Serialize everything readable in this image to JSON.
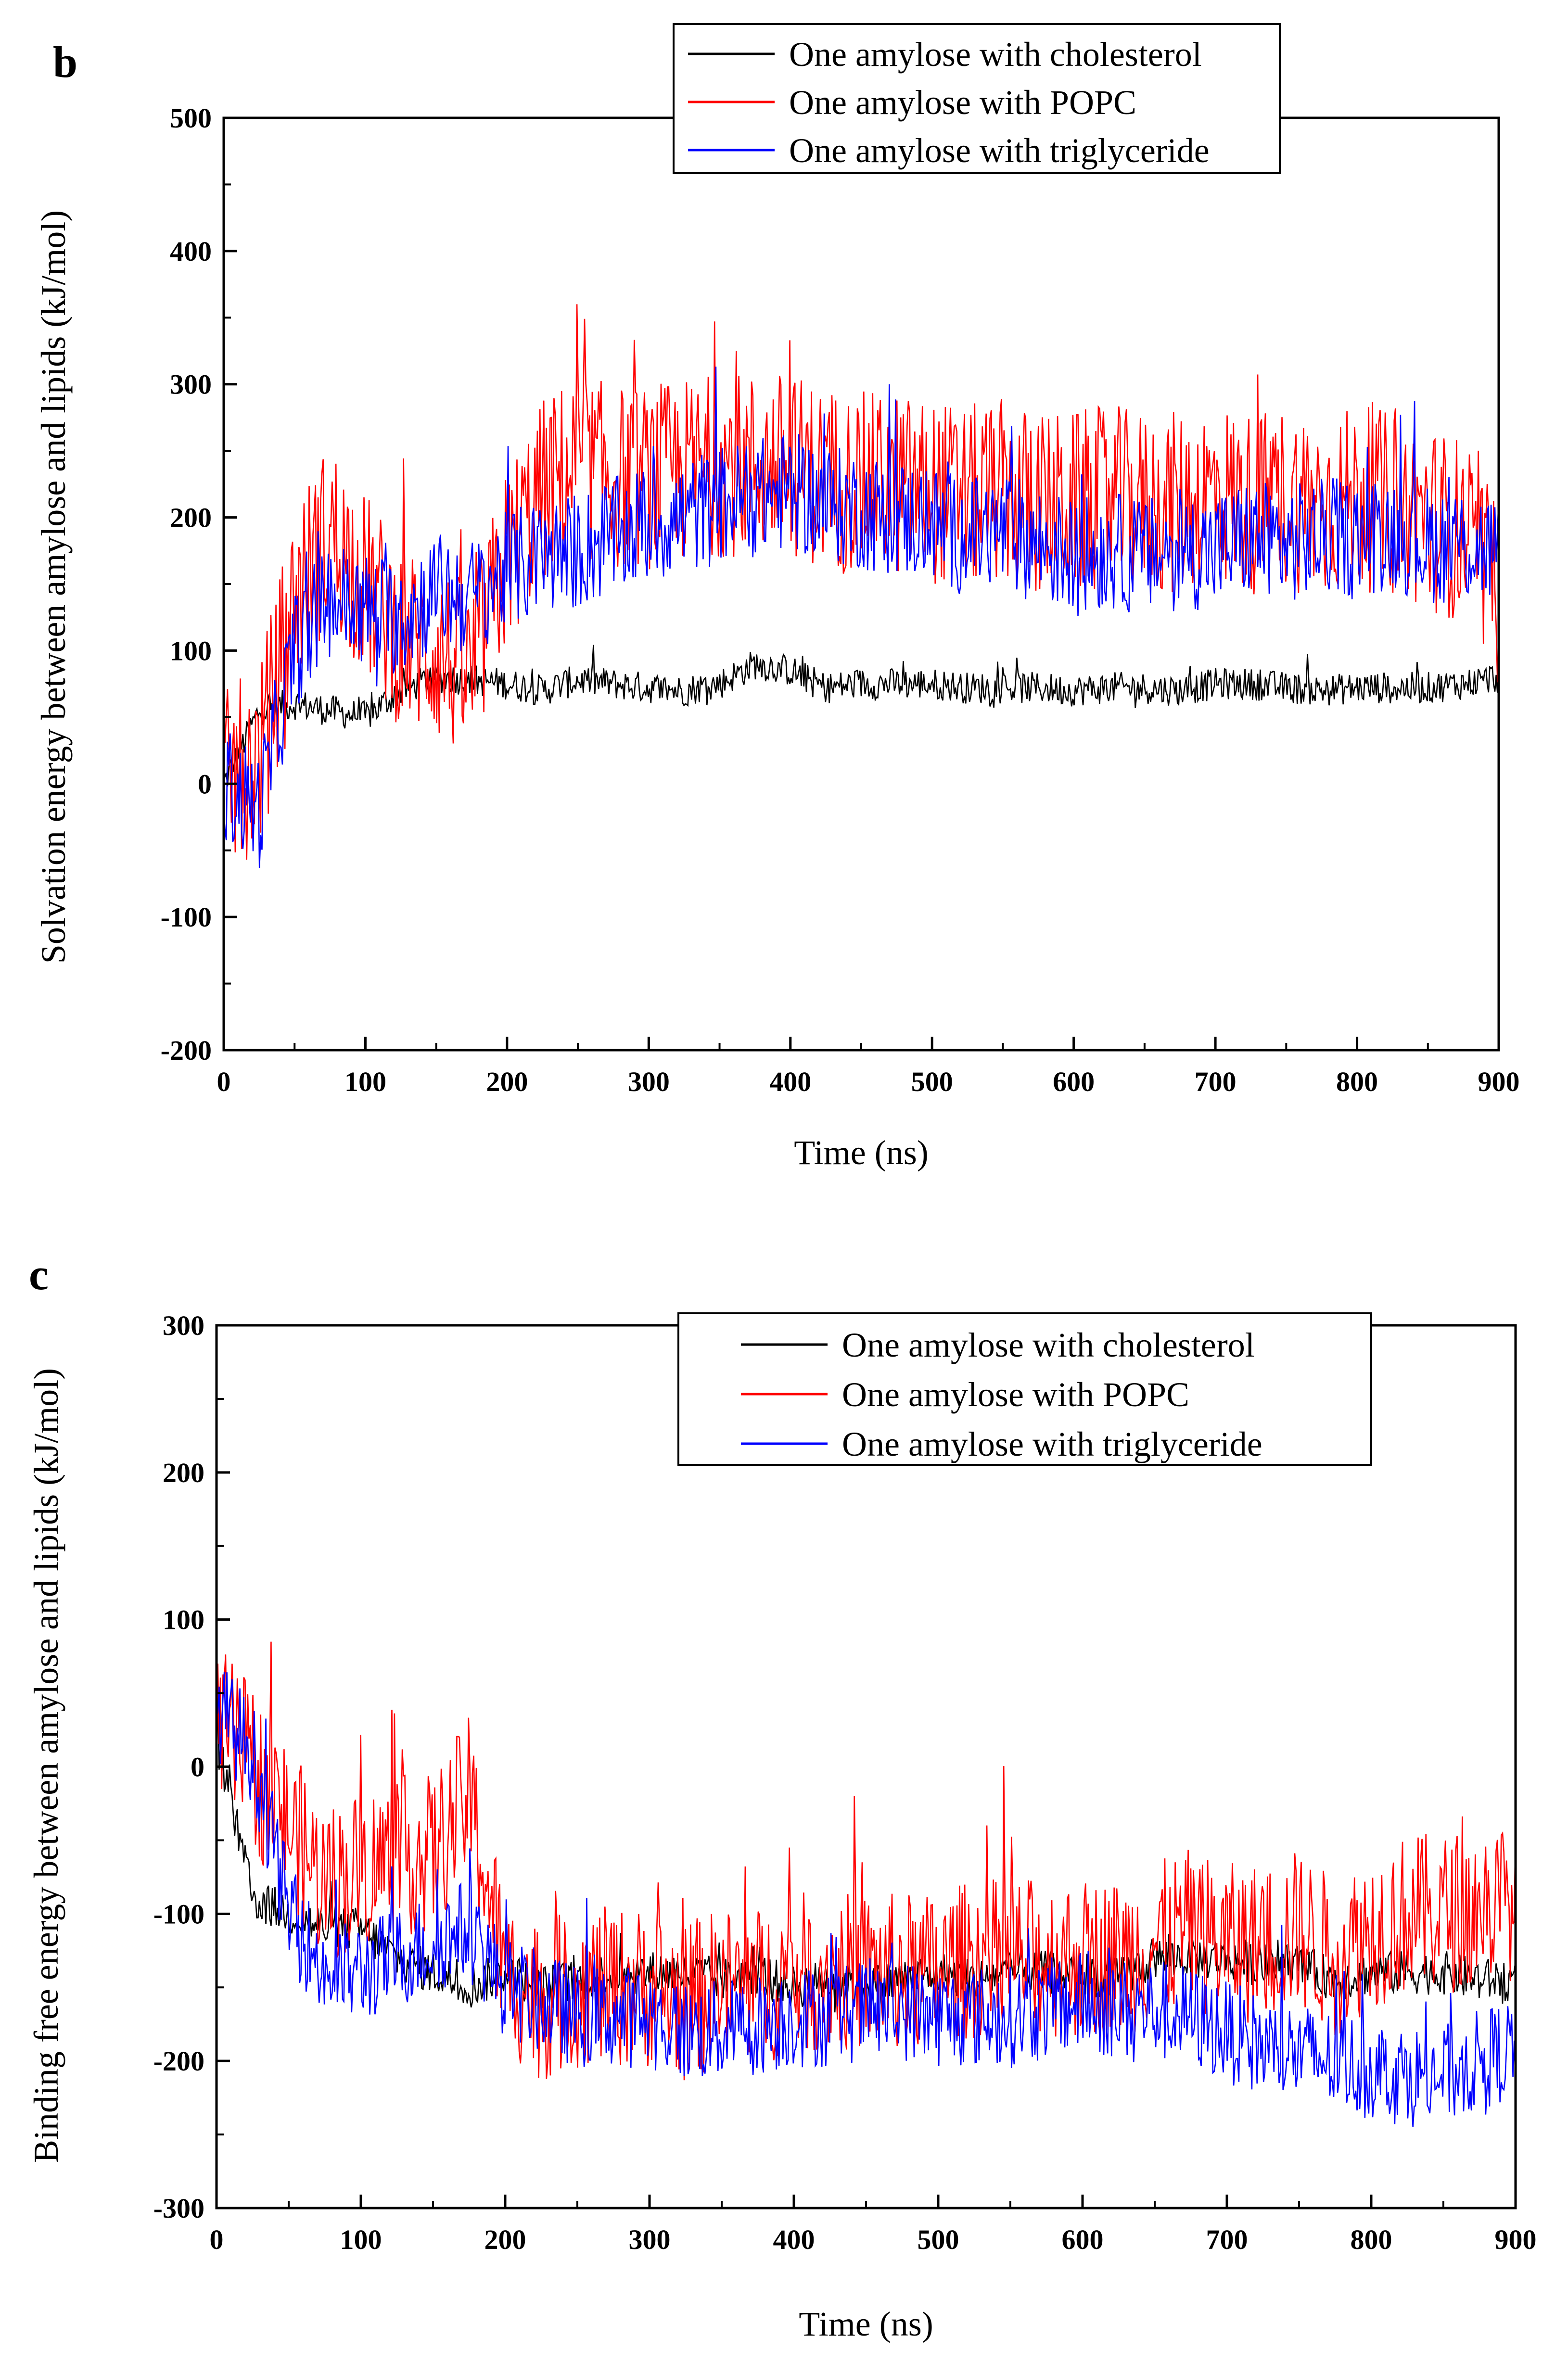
{
  "chart_data": [
    {
      "panel": "b",
      "type": "line",
      "title": "",
      "xlabel": "Time (ns)",
      "ylabel": "Solvation energy between amylose and lipids (kJ/mol)",
      "xlim": [
        0,
        900
      ],
      "ylim": [
        -200,
        500
      ],
      "xticks": [
        "0",
        "100",
        "200",
        "300",
        "400",
        "500",
        "600",
        "700",
        "800",
        "900"
      ],
      "yticks": [
        "-200",
        "-100",
        "0",
        "100",
        "200",
        "300",
        "400",
        "500"
      ],
      "legend_position": "top-right",
      "x": [
        0,
        25,
        50,
        75,
        100,
        125,
        150,
        175,
        200,
        225,
        250,
        275,
        300,
        325,
        350,
        375,
        400,
        425,
        450,
        475,
        500,
        525,
        550,
        575,
        600,
        625,
        650,
        675,
        700,
        725,
        750,
        775,
        800,
        825,
        850,
        875,
        900
      ],
      "series": [
        {
          "name": "One amylose with cholesterol",
          "color": "#000000",
          "noise": 12,
          "values": [
            0,
            55,
            60,
            55,
            50,
            70,
            80,
            78,
            75,
            70,
            78,
            75,
            72,
            70,
            75,
            90,
            85,
            72,
            75,
            75,
            75,
            72,
            72,
            72,
            70,
            72,
            72,
            70,
            75,
            75,
            72,
            70,
            72,
            72,
            72,
            75,
            80
          ]
        },
        {
          "name": "One amylose with POPC",
          "color": "#ff0000",
          "noise": 70,
          "values": [
            0,
            20,
            140,
            190,
            150,
            110,
            100,
            80,
            170,
            220,
            240,
            230,
            230,
            235,
            240,
            240,
            240,
            230,
            225,
            225,
            220,
            215,
            220,
            210,
            210,
            215,
            210,
            210,
            220,
            210,
            215,
            210,
            215,
            210,
            200,
            190,
            140
          ]
        },
        {
          "name": "One amylose with triglyceride",
          "color": "#0000ff",
          "noise": 45,
          "values": [
            0,
            -20,
            100,
            140,
            130,
            125,
            145,
            140,
            160,
            170,
            175,
            185,
            195,
            200,
            210,
            215,
            220,
            210,
            205,
            200,
            195,
            185,
            190,
            180,
            170,
            175,
            170,
            175,
            175,
            185,
            180,
            185,
            185,
            190,
            180,
            180,
            175
          ]
        }
      ]
    },
    {
      "panel": "c",
      "type": "line",
      "title": "",
      "xlabel": "Time (ns)",
      "ylabel": "Binding free energy between amylose and lipids (kJ/mol)",
      "xlim": [
        0,
        900
      ],
      "ylim": [
        -300,
        300
      ],
      "xticks": [
        "0",
        "100",
        "200",
        "300",
        "400",
        "500",
        "600",
        "700",
        "800",
        "900"
      ],
      "yticks": [
        "-300",
        "-200",
        "-100",
        "0",
        "100",
        "200",
        "300"
      ],
      "legend_position": "top-right",
      "x": [
        0,
        25,
        50,
        75,
        100,
        125,
        150,
        175,
        200,
        225,
        250,
        275,
        300,
        325,
        350,
        375,
        400,
        425,
        450,
        475,
        500,
        525,
        550,
        575,
        600,
        625,
        650,
        675,
        700,
        725,
        750,
        775,
        800,
        825,
        850,
        875,
        900
      ],
      "series": [
        {
          "name": "One amylose with cholesterol",
          "color": "#000000",
          "noise": 15,
          "values": [
            20,
            -90,
            -100,
            -110,
            -110,
            -130,
            -140,
            -150,
            -140,
            -150,
            -145,
            -140,
            -140,
            -140,
            -145,
            -140,
            -150,
            -145,
            -150,
            -145,
            -140,
            -145,
            -140,
            -140,
            -140,
            -145,
            -130,
            -130,
            -130,
            -135,
            -135,
            -145,
            -140,
            -140,
            -140,
            -145,
            -145
          ]
        },
        {
          "name": "One amylose with POPC",
          "color": "#ff0000",
          "noise": 55,
          "values": [
            30,
            0,
            -40,
            -80,
            -70,
            -60,
            -60,
            -20,
            -140,
            -160,
            -150,
            -150,
            -150,
            -160,
            -150,
            -150,
            -140,
            -140,
            -140,
            -140,
            -140,
            -130,
            -130,
            -130,
            -130,
            -130,
            -120,
            -110,
            -120,
            -120,
            -110,
            -130,
            -110,
            -100,
            -100,
            -95,
            -90
          ]
        },
        {
          "name": "One amylose with triglyceride",
          "color": "#0000ff",
          "noise": 35,
          "values": [
            40,
            10,
            -100,
            -140,
            -140,
            -130,
            -120,
            -110,
            -150,
            -160,
            -170,
            -170,
            -170,
            -180,
            -180,
            -175,
            -170,
            -170,
            -165,
            -165,
            -170,
            -170,
            -170,
            -165,
            -160,
            -165,
            -165,
            -170,
            -180,
            -190,
            -195,
            -200,
            -205,
            -210,
            -210,
            -200,
            -190
          ]
        }
      ]
    }
  ]
}
